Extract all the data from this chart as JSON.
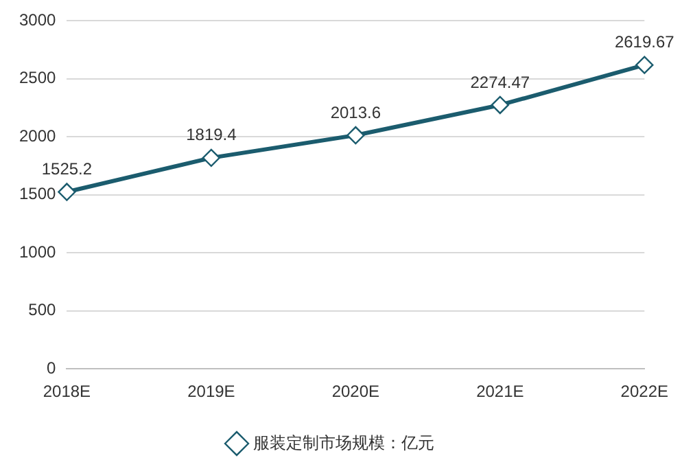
{
  "chart_data": {
    "type": "line",
    "categories": [
      "2018E",
      "2019E",
      "2020E",
      "2021E",
      "2022E"
    ],
    "series": [
      {
        "name": "服装定制市场规模：亿元",
        "color": "#1b5c6e",
        "values": [
          1525.2,
          1819.4,
          2013.6,
          2274.47,
          2619.67
        ]
      }
    ],
    "ylim": [
      0,
      3000
    ],
    "yticks": [
      0,
      500,
      1000,
      1500,
      2000,
      2500,
      3000
    ],
    "grid": "y",
    "legend": "bottom",
    "marker": "diamond",
    "line_style": "solid",
    "data_labels": true
  }
}
